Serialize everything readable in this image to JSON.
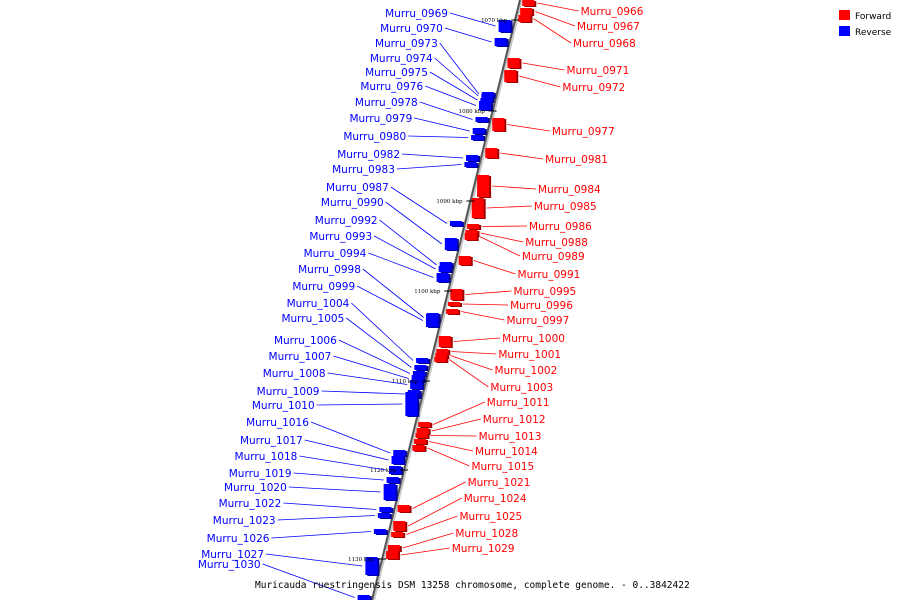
{
  "caption": "Muricauda ruestringensis DSM 13258 chromosome, complete genome. - 0..3842422",
  "legend": {
    "forward": {
      "label": "Forward",
      "color": "#ff0000"
    },
    "reverse": {
      "label": "Reverse",
      "color": "#0000ff"
    }
  },
  "ticks": [
    {
      "label": "1070 kbp"
    },
    {
      "label": "1080 kbp"
    },
    {
      "label": "1090 kbp"
    },
    {
      "label": "1100 kbp"
    },
    {
      "label": "1110 kbp"
    },
    {
      "label": "1120 kbp"
    },
    {
      "label": "1130 kbp"
    }
  ],
  "genes": [
    {
      "name": "Murru_0966",
      "strand": "forward"
    },
    {
      "name": "Murru_0967",
      "strand": "forward"
    },
    {
      "name": "Murru_0968",
      "strand": "forward"
    },
    {
      "name": "Murru_0969",
      "strand": "reverse"
    },
    {
      "name": "Murru_0970",
      "strand": "reverse"
    },
    {
      "name": "Murru_0971",
      "strand": "forward"
    },
    {
      "name": "Murru_0972",
      "strand": "forward"
    },
    {
      "name": "Murru_0973",
      "strand": "reverse"
    },
    {
      "name": "Murru_0974",
      "strand": "reverse"
    },
    {
      "name": "Murru_0975",
      "strand": "reverse"
    },
    {
      "name": "Murru_0976",
      "strand": "reverse"
    },
    {
      "name": "Murru_0977",
      "strand": "forward"
    },
    {
      "name": "Murru_0978",
      "strand": "reverse"
    },
    {
      "name": "Murru_0979",
      "strand": "reverse"
    },
    {
      "name": "Murru_0980",
      "strand": "reverse"
    },
    {
      "name": "Murru_0981",
      "strand": "forward"
    },
    {
      "name": "Murru_0982",
      "strand": "reverse"
    },
    {
      "name": "Murru_0983",
      "strand": "reverse"
    },
    {
      "name": "Murru_0984",
      "strand": "forward"
    },
    {
      "name": "Murru_0985",
      "strand": "forward"
    },
    {
      "name": "Murru_0986",
      "strand": "forward"
    },
    {
      "name": "Murru_0987",
      "strand": "reverse"
    },
    {
      "name": "Murru_0988",
      "strand": "forward"
    },
    {
      "name": "Murru_0989",
      "strand": "forward"
    },
    {
      "name": "Murru_0990",
      "strand": "reverse"
    },
    {
      "name": "Murru_0991",
      "strand": "forward"
    },
    {
      "name": "Murru_0992",
      "strand": "reverse"
    },
    {
      "name": "Murru_0993",
      "strand": "reverse"
    },
    {
      "name": "Murru_0994",
      "strand": "reverse"
    },
    {
      "name": "Murru_0995",
      "strand": "forward"
    },
    {
      "name": "Murru_0996",
      "strand": "forward"
    },
    {
      "name": "Murru_0997",
      "strand": "forward"
    },
    {
      "name": "Murru_0998",
      "strand": "reverse"
    },
    {
      "name": "Murru_0999",
      "strand": "reverse"
    },
    {
      "name": "Murru_1000",
      "strand": "forward"
    },
    {
      "name": "Murru_1001",
      "strand": "forward"
    },
    {
      "name": "Murru_1002",
      "strand": "forward"
    },
    {
      "name": "Murru_1003",
      "strand": "forward"
    },
    {
      "name": "Murru_1004",
      "strand": "reverse"
    },
    {
      "name": "Murru_1005",
      "strand": "reverse"
    },
    {
      "name": "Murru_1006",
      "strand": "reverse"
    },
    {
      "name": "Murru_1007",
      "strand": "reverse"
    },
    {
      "name": "Murru_1008",
      "strand": "reverse"
    },
    {
      "name": "Murru_1009",
      "strand": "reverse"
    },
    {
      "name": "Murru_1010",
      "strand": "reverse"
    },
    {
      "name": "Murru_1011",
      "strand": "forward"
    },
    {
      "name": "Murru_1012",
      "strand": "forward"
    },
    {
      "name": "Murru_1013",
      "strand": "forward"
    },
    {
      "name": "Murru_1014",
      "strand": "forward"
    },
    {
      "name": "Murru_1015",
      "strand": "forward"
    },
    {
      "name": "Murru_1016",
      "strand": "reverse"
    },
    {
      "name": "Murru_1017",
      "strand": "reverse"
    },
    {
      "name": "Murru_1018",
      "strand": "reverse"
    },
    {
      "name": "Murru_1019",
      "strand": "reverse"
    },
    {
      "name": "Murru_1020",
      "strand": "reverse"
    },
    {
      "name": "Murru_1021",
      "strand": "forward"
    },
    {
      "name": "Murru_1022",
      "strand": "reverse"
    },
    {
      "name": "Murru_1023",
      "strand": "reverse"
    },
    {
      "name": "Murru_1024",
      "strand": "forward"
    },
    {
      "name": "Murru_1025",
      "strand": "forward"
    },
    {
      "name": "Murru_1026",
      "strand": "reverse"
    },
    {
      "name": "Murru_1027",
      "strand": "reverse"
    },
    {
      "name": "Murru_1028",
      "strand": "forward"
    },
    {
      "name": "Murru_1029",
      "strand": "forward"
    },
    {
      "name": "Murru_1030",
      "strand": "reverse"
    }
  ]
}
